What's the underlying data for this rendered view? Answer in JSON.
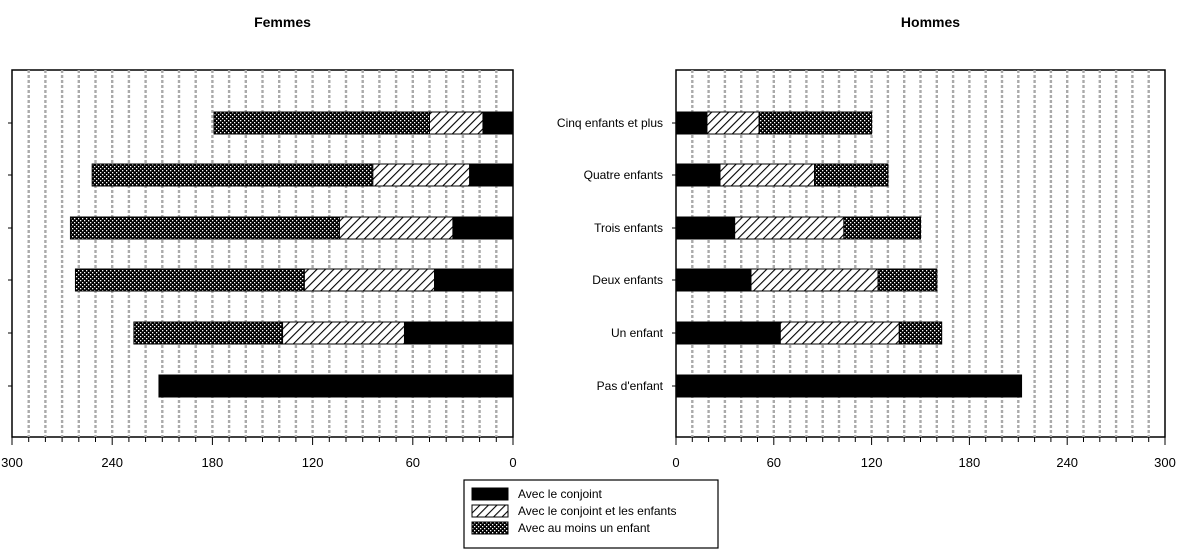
{
  "chart_data": [
    {
      "type": "bar",
      "orientation": "horizontal-stacked",
      "title": "Femmes",
      "x_direction": "reversed",
      "categories": [
        "Pas d'enfant",
        "Un enfant",
        "Deux enfants",
        "Trois enfants",
        "Quatre enfants",
        "Cinq enfants et plus"
      ],
      "series": [
        {
          "name": "Avec le conjoint",
          "values": [
            212,
            65,
            47,
            36,
            26,
            18
          ]
        },
        {
          "name": "Avec le conjoint et les enfants",
          "values": [
            0,
            73,
            78,
            68,
            58,
            32
          ]
        },
        {
          "name": "Avec au moins un enfant",
          "values": [
            0,
            89,
            137,
            161,
            168,
            129
          ]
        }
      ],
      "xlim": [
        0,
        300
      ],
      "xticks": [
        "300",
        "240",
        "180",
        "120",
        "60",
        "0"
      ],
      "grid": true,
      "legend": "bottom-center"
    },
    {
      "type": "bar",
      "orientation": "horizontal-stacked",
      "title": "Hommes",
      "categories": [
        "Pas d'enfant",
        "Un enfant",
        "Deux enfants",
        "Trois enfants",
        "Quatre enfants",
        "Cinq enfants et plus"
      ],
      "series": [
        {
          "name": "Avec le conjoint",
          "values": [
            212,
            64,
            46,
            36,
            27,
            19
          ]
        },
        {
          "name": "Avec le conjoint et les enfants",
          "values": [
            0,
            73,
            78,
            67,
            58,
            32
          ]
        },
        {
          "name": "Avec au moins un enfant",
          "values": [
            0,
            26,
            36,
            47,
            45,
            69
          ]
        }
      ],
      "xlim": [
        0,
        300
      ],
      "xticks": [
        "0",
        "60",
        "120",
        "180",
        "240",
        "300"
      ],
      "grid": true,
      "legend": "bottom-center"
    }
  ],
  "colors": {
    "avec_le_conjoint": "#000000",
    "hatch_background": "#ffffff",
    "grid": "#aaaaaa"
  },
  "legend": {
    "items": [
      "Avec le conjoint",
      "Avec le conjoint et les enfants",
      "Avec au moins un enfant"
    ]
  }
}
